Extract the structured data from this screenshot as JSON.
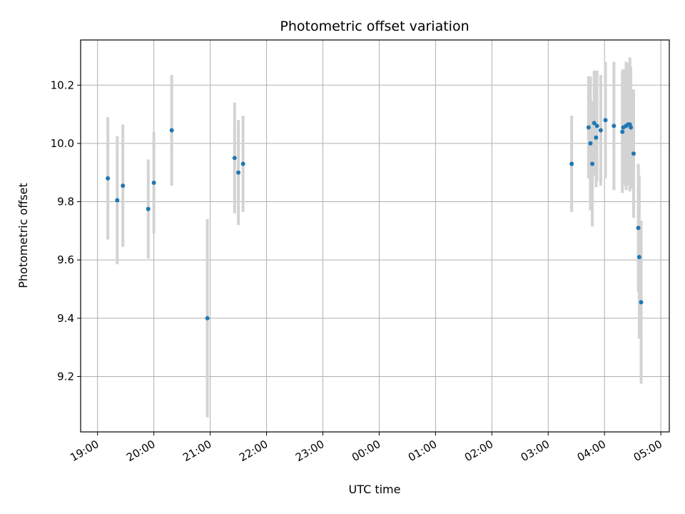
{
  "chart_data": {
    "type": "scatter",
    "title": "Photometric offset variation",
    "xlabel": "UTC time",
    "ylabel": "Photometric offset",
    "x_unit": "UTC",
    "x_ticks": [
      "19:00",
      "20:00",
      "21:00",
      "22:00",
      "23:00",
      "00:00",
      "01:00",
      "02:00",
      "03:00",
      "04:00",
      "05:00"
    ],
    "y_ticks": [
      9.2,
      9.4,
      9.6,
      9.8,
      10.0,
      10.2
    ],
    "ylim": [
      9.01,
      10.355
    ],
    "xlim": [
      "18:42",
      "05:09"
    ],
    "grid": true,
    "colors": {
      "point": "#1f77b4",
      "errorbar": "#d3d3d3",
      "grid": "#b0b0b0"
    },
    "series": [
      {
        "points": [
          {
            "x": "19:11",
            "y": 9.88,
            "err": 0.21
          },
          {
            "x": "19:21",
            "y": 9.805,
            "err": 0.22
          },
          {
            "x": "19:27",
            "y": 9.855,
            "err": 0.21
          },
          {
            "x": "19:54",
            "y": 9.775,
            "err": 0.17
          },
          {
            "x": "20:00",
            "y": 9.865,
            "err": 0.175
          },
          {
            "x": "20:19",
            "y": 10.045,
            "err": 0.19
          },
          {
            "x": "20:57",
            "y": 9.4,
            "err": 0.34
          },
          {
            "x": "21:26",
            "y": 9.95,
            "err": 0.19
          },
          {
            "x": "21:30",
            "y": 9.9,
            "err": 0.18
          },
          {
            "x": "21:35",
            "y": 9.93,
            "err": 0.165
          },
          {
            "x": "03:25",
            "y": 9.93,
            "err": 0.165
          },
          {
            "x": "03:43",
            "y": 10.055,
            "err": 0.175
          },
          {
            "x": "03:45",
            "y": 10.0,
            "err": 0.23
          },
          {
            "x": "03:47",
            "y": 9.93,
            "err": 0.215
          },
          {
            "x": "03:49",
            "y": 10.07,
            "err": 0.18
          },
          {
            "x": "03:51",
            "y": 10.02,
            "err": 0.17
          },
          {
            "x": "03:52",
            "y": 10.06,
            "err": 0.19
          },
          {
            "x": "03:56",
            "y": 10.045,
            "err": 0.19
          },
          {
            "x": "04:01",
            "y": 10.08,
            "err": 0.2
          },
          {
            "x": "04:10",
            "y": 10.06,
            "err": 0.22
          },
          {
            "x": "04:19",
            "y": 10.04,
            "err": 0.21
          },
          {
            "x": "04:20",
            "y": 10.055,
            "err": 0.2
          },
          {
            "x": "04:23",
            "y": 10.06,
            "err": 0.22
          },
          {
            "x": "04:25",
            "y": 10.065,
            "err": 0.21
          },
          {
            "x": "04:27",
            "y": 10.065,
            "err": 0.23
          },
          {
            "x": "04:28",
            "y": 10.055,
            "err": 0.21
          },
          {
            "x": "04:31",
            "y": 9.965,
            "err": 0.22
          },
          {
            "x": "04:36",
            "y": 9.71,
            "err": 0.22
          },
          {
            "x": "04:37",
            "y": 9.61,
            "err": 0.28
          },
          {
            "x": "04:39",
            "y": 9.455,
            "err": 0.28
          }
        ]
      }
    ]
  }
}
